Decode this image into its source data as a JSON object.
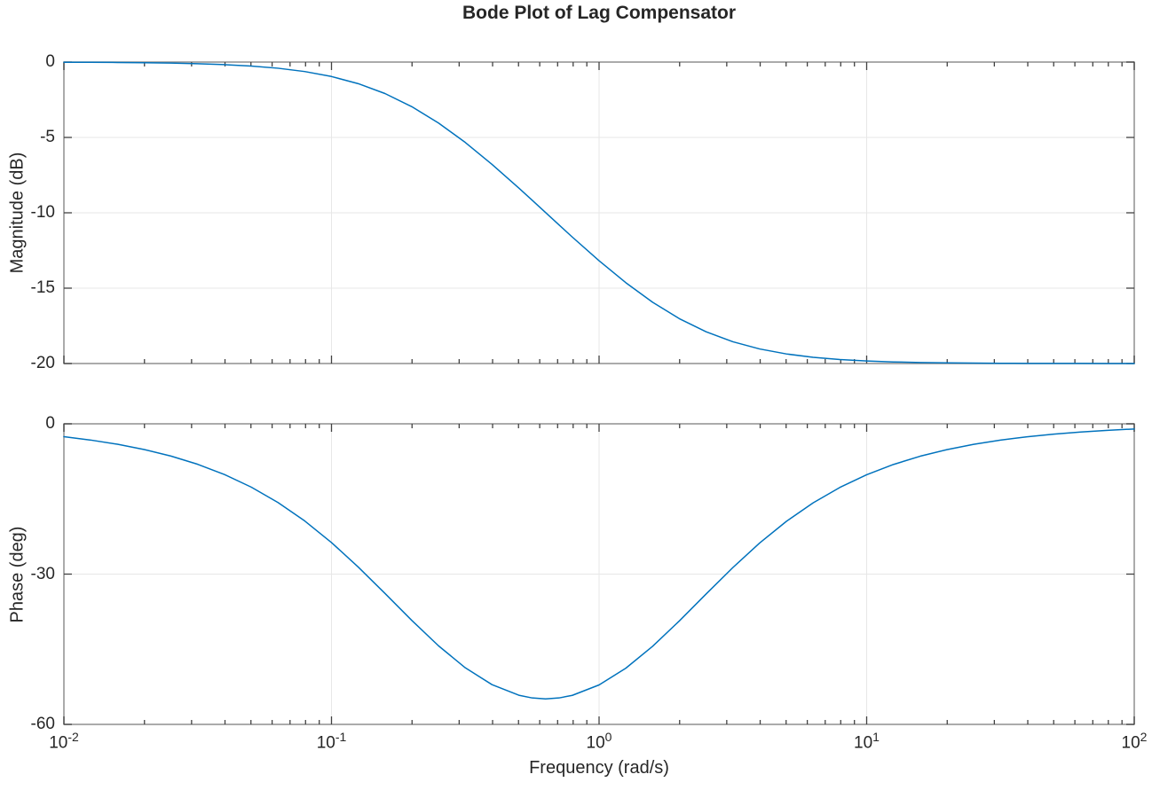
{
  "figure": {
    "title": "Bode Plot of Lag Compensator",
    "xlabel": "Frequency (rad/s)"
  },
  "style": {
    "line_color": "#0072BD",
    "axis_color": "#8f8f8f",
    "tick_color": "#414141",
    "grid_color": "#e7e7e7",
    "text_color": "#262626",
    "background": "#ffffff"
  },
  "chart_data": [
    {
      "type": "line",
      "name": "magnitude",
      "title": "Bode Plot of Lag Compensator",
      "xlabel": "",
      "ylabel": "Magnitude (dB)",
      "xscale": "log",
      "grid": true,
      "legend": "none",
      "xlim": [
        0.01,
        100
      ],
      "ylim": [
        -20,
        0
      ],
      "xticks": [
        0.01,
        0.1,
        1,
        10,
        100
      ],
      "yticks": [
        0,
        -5,
        -10,
        -15,
        -20
      ],
      "ytick_labels": [
        "0",
        "-5",
        "-10",
        "-15",
        "-20"
      ],
      "x": [
        0.01,
        0.012589,
        0.015849,
        0.019953,
        0.025119,
        0.031623,
        0.039811,
        0.050119,
        0.063096,
        0.079433,
        0.1,
        0.125893,
        0.158489,
        0.199526,
        0.251189,
        0.316228,
        0.398107,
        0.501187,
        0.562341,
        0.630957,
        0.707946,
        0.794328,
        1,
        1.258925,
        1.584893,
        1.995262,
        2.511886,
        3.162278,
        3.981072,
        5.011872,
        6.309573,
        7.943282,
        10,
        12.589254,
        15.848932,
        19.952623,
        25.118864,
        31.622777,
        39.810717,
        50.118723,
        63.095734,
        79.432823,
        100
      ],
      "y": [
        -0.011,
        -0.017,
        -0.027,
        -0.043,
        -0.068,
        -0.107,
        -0.17,
        -0.262,
        -0.408,
        -0.629,
        -0.958,
        -1.432,
        -2.089,
        -2.957,
        -4.044,
        -5.333,
        -6.789,
        -8.357,
        -9.166,
        -9.983,
        -10.8,
        -11.61,
        -13.181,
        -14.638,
        -15.932,
        -17.023,
        -17.895,
        -18.556,
        -19.033,
        -19.364,
        -19.589,
        -19.736,
        -19.831,
        -19.894,
        -19.932,
        -19.957,
        -19.973,
        -19.983,
        -19.99,
        -19.994,
        -19.996,
        -19.997,
        -19.998
      ]
    },
    {
      "type": "line",
      "name": "phase",
      "title": "",
      "xlabel": "Frequency (rad/s)",
      "ylabel": "Phase (deg)",
      "xscale": "log",
      "grid": true,
      "legend": "none",
      "xlim": [
        0.01,
        100
      ],
      "ylim": [
        -60,
        0
      ],
      "xticks": [
        0.01,
        0.1,
        1,
        10,
        100
      ],
      "xtick_display": [
        {
          "base": "10",
          "exp": "-2"
        },
        {
          "base": "10",
          "exp": "-1"
        },
        {
          "base": "10",
          "exp": "0"
        },
        {
          "base": "10",
          "exp": "1"
        },
        {
          "base": "10",
          "exp": "2"
        }
      ],
      "yticks": [
        0,
        -30,
        -60
      ],
      "ytick_labels": [
        "0",
        "-30",
        "-60"
      ],
      "x": [
        0.01,
        0.012589,
        0.015849,
        0.019953,
        0.025119,
        0.031623,
        0.039811,
        0.050119,
        0.063096,
        0.079433,
        0.1,
        0.125893,
        0.158489,
        0.199526,
        0.251189,
        0.316228,
        0.398107,
        0.501187,
        0.562341,
        0.630957,
        0.707946,
        0.794328,
        1,
        1.258925,
        1.584893,
        1.995262,
        2.511886,
        3.162278,
        3.981072,
        5.011872,
        6.309573,
        7.943282,
        10,
        12.589254,
        15.848932,
        19.952623,
        25.118864,
        31.622777,
        39.810717,
        50.118723,
        63.095734,
        79.432823,
        100
      ],
      "y": [
        -2.576,
        -3.242,
        -4.078,
        -5.125,
        -6.438,
        -8.08,
        -10.118,
        -12.633,
        -15.703,
        -19.385,
        -23.703,
        -28.59,
        -33.857,
        -39.235,
        -44.315,
        -48.703,
        -52.069,
        -54.179,
        -54.722,
        -54.905,
        -54.723,
        -54.205,
        -52.125,
        -48.78,
        -44.421,
        -39.344,
        -33.975,
        -28.693,
        -23.798,
        -19.467,
        -15.769,
        -12.694,
        -10.164,
        -8.117,
        -6.467,
        -5.15,
        -4.096,
        -3.257,
        -2.589,
        -2.057,
        -1.634,
        -1.298,
        -1.031
      ]
    }
  ]
}
